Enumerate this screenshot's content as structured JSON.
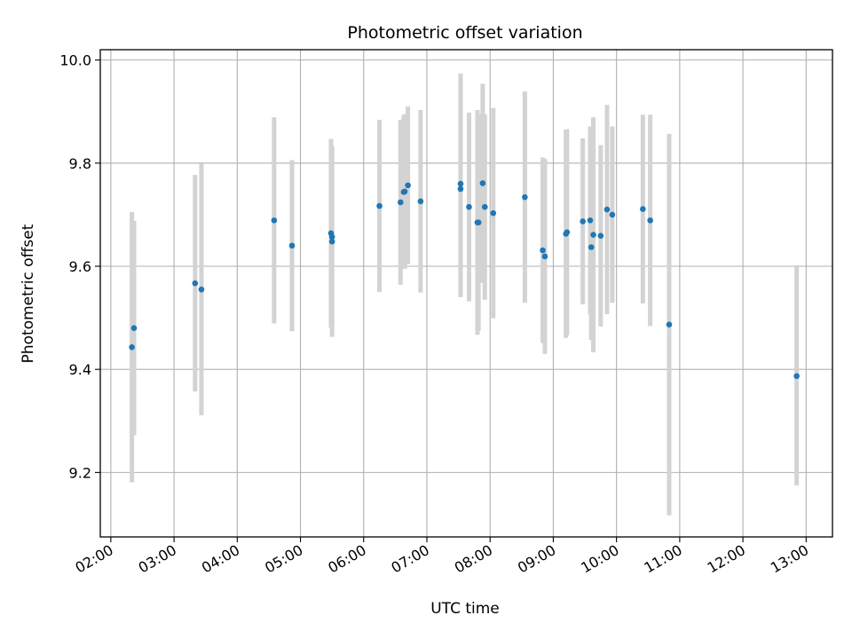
{
  "chart_data": {
    "type": "scatter",
    "title": "Photometric offset variation",
    "xlabel": "UTC time",
    "ylabel": "Photometric offset",
    "xlim": [
      "01:50",
      "13:25"
    ],
    "ylim": [
      9.075,
      10.02
    ],
    "x_ticks": [
      "02:00",
      "03:00",
      "04:00",
      "05:00",
      "06:00",
      "07:00",
      "08:00",
      "09:00",
      "10:00",
      "11:00",
      "12:00",
      "13:00"
    ],
    "y_ticks": [
      9.2,
      9.4,
      9.6,
      9.8,
      10.0
    ],
    "y_tick_labels": [
      "9.2",
      "9.4",
      "9.6",
      "9.8",
      "10.0"
    ],
    "grid": true,
    "marker_color": "#1f77b4",
    "errorbar_color": "#d3d3d3",
    "series": [
      {
        "points": [
          {
            "x": "02:20",
            "y": 9.443,
            "err": 0.262
          },
          {
            "x": "02:22",
            "y": 9.48,
            "err": 0.208
          },
          {
            "x": "03:20",
            "y": 9.567,
            "err": 0.21
          },
          {
            "x": "03:26",
            "y": 9.555,
            "err": 0.244
          },
          {
            "x": "04:35",
            "y": 9.689,
            "err": 0.2
          },
          {
            "x": "04:52",
            "y": 9.64,
            "err": 0.166
          },
          {
            "x": "05:29",
            "y": 9.664,
            "err": 0.183
          },
          {
            "x": "05:30",
            "y": 9.657,
            "err": 0.175
          },
          {
            "x": "05:30",
            "y": 9.648,
            "err": 0.185
          },
          {
            "x": "06:15",
            "y": 9.717,
            "err": 0.167
          },
          {
            "x": "06:35",
            "y": 9.724,
            "err": 0.16
          },
          {
            "x": "06:38",
            "y": 9.744,
            "err": 0.148
          },
          {
            "x": "06:39",
            "y": 9.745,
            "err": 0.15
          },
          {
            "x": "06:42",
            "y": 9.757,
            "err": 0.153
          },
          {
            "x": "06:54",
            "y": 9.726,
            "err": 0.177
          },
          {
            "x": "07:32",
            "y": 9.76,
            "err": 0.214
          },
          {
            "x": "07:32",
            "y": 9.75,
            "err": 0.21
          },
          {
            "x": "07:40",
            "y": 9.715,
            "err": 0.183
          },
          {
            "x": "07:48",
            "y": 9.685,
            "err": 0.218
          },
          {
            "x": "07:49",
            "y": 9.685,
            "err": 0.21
          },
          {
            "x": "07:53",
            "y": 9.761,
            "err": 0.193
          },
          {
            "x": "07:55",
            "y": 9.715,
            "err": 0.18
          },
          {
            "x": "08:03",
            "y": 9.703,
            "err": 0.204
          },
          {
            "x": "08:33",
            "y": 9.734,
            "err": 0.205
          },
          {
            "x": "08:50",
            "y": 9.631,
            "err": 0.18
          },
          {
            "x": "08:52",
            "y": 9.619,
            "err": 0.189
          },
          {
            "x": "09:12",
            "y": 9.663,
            "err": 0.202
          },
          {
            "x": "09:13",
            "y": 9.666,
            "err": 0.2
          },
          {
            "x": "09:28",
            "y": 9.687,
            "err": 0.161
          },
          {
            "x": "09:35",
            "y": 9.689,
            "err": 0.182
          },
          {
            "x": "09:36",
            "y": 9.637,
            "err": 0.18
          },
          {
            "x": "09:38",
            "y": 9.661,
            "err": 0.228
          },
          {
            "x": "09:45",
            "y": 9.659,
            "err": 0.176
          },
          {
            "x": "09:51",
            "y": 9.71,
            "err": 0.203
          },
          {
            "x": "09:56",
            "y": 9.7,
            "err": 0.171
          },
          {
            "x": "10:25",
            "y": 9.711,
            "err": 0.183
          },
          {
            "x": "10:32",
            "y": 9.689,
            "err": 0.205
          },
          {
            "x": "10:50",
            "y": 9.487,
            "err": 0.37
          },
          {
            "x": "12:51",
            "y": 9.387,
            "err": 0.212
          }
        ]
      }
    ]
  }
}
